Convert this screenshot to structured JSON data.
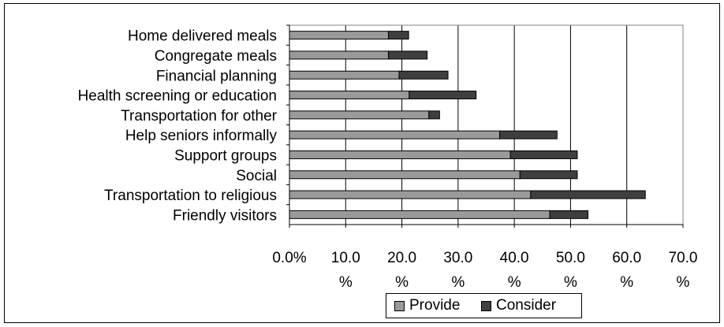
{
  "chart_data": {
    "type": "bar",
    "orientation": "horizontal",
    "stacked": true,
    "categories": [
      "Home delivered meals",
      "Congregate meals",
      "Financial planning",
      "Health screening or education",
      "Transportation for other",
      "Help seniors informally",
      "Support groups",
      "Social",
      "Transportation to religious",
      "Friendly visitors"
    ],
    "series": [
      {
        "name": "Provide",
        "color": "#9a9a9a",
        "values": [
          17.6,
          17.6,
          19.5,
          21.3,
          24.8,
          37.4,
          39.3,
          41.0,
          42.9,
          46.3
        ]
      },
      {
        "name": "Consider",
        "color": "#3f3f3f",
        "values": [
          3.6,
          6.9,
          8.7,
          11.9,
          1.9,
          10.2,
          11.9,
          10.2,
          20.4,
          6.8
        ]
      }
    ],
    "xlim": [
      0,
      70
    ],
    "xticks": [
      {
        "value": 0,
        "line1": "0.0%",
        "line2": ""
      },
      {
        "value": 10,
        "line1": "10.0",
        "line2": "%"
      },
      {
        "value": 20,
        "line1": "20.0",
        "line2": "%"
      },
      {
        "value": 30,
        "line1": "30.0",
        "line2": "%"
      },
      {
        "value": 40,
        "line1": "40.0",
        "line2": "%"
      },
      {
        "value": 50,
        "line1": "50.0",
        "line2": "%"
      },
      {
        "value": 60,
        "line1": "60.0",
        "line2": "%"
      },
      {
        "value": 70,
        "line1": "70.0",
        "line2": "%"
      }
    ],
    "grid": true,
    "legend_position": "bottom"
  }
}
